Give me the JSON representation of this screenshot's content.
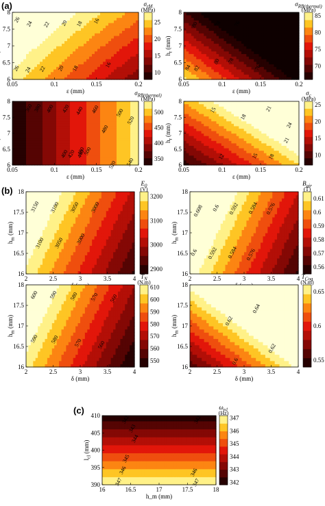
{
  "panel_labels": [
    "(a)",
    "(b)",
    "(c)"
  ],
  "chart_data": [
    {
      "type": "heatmap",
      "title": "σ_rM",
      "unit": "(MPa)",
      "xlabel": "ε (mm)",
      "ylabel": "h_r (mm)",
      "xlim": [
        0.05,
        0.2
      ],
      "ylim": [
        6,
        8
      ],
      "xticks": [
        "0.05",
        "0.1",
        "0.15",
        "0.2"
      ],
      "yticks": [
        "6",
        "6.5",
        "7",
        "7.5",
        "8"
      ],
      "colorbar": {
        "min": 8,
        "max": 28,
        "ticks": [
          "10",
          "15",
          "20",
          "25"
        ]
      },
      "model": {
        "z0": 27,
        "ax": -93,
        "ay": 3.5,
        "axy": 8,
        "axx": 0
      },
      "contour_labels": [
        "26",
        "24",
        "22",
        "20",
        "18",
        "16",
        "26",
        "24",
        "22",
        "20",
        "18",
        "16"
      ]
    },
    {
      "type": "heatmap",
      "title": "σ_RB(thermal)",
      "unit": "(MPa)",
      "xlabel": "ε (mm)",
      "ylabel": "h_r (mm)",
      "xlim": [
        0.05,
        0.2
      ],
      "ylim": [
        6,
        8
      ],
      "xticks": [
        "0.05",
        "0.1",
        "0.15",
        "0.2"
      ],
      "yticks": [
        "6",
        "6.5",
        "7",
        "7.5",
        "8"
      ],
      "colorbar": {
        "min": 66,
        "max": 86,
        "ticks": [
          "70",
          "75",
          "80",
          "85"
        ]
      },
      "model": {
        "z0": 84.5,
        "ax": -130,
        "ay": -8,
        "axy": 0,
        "axx": 0
      },
      "contour_labels": [
        "80",
        "78",
        "76",
        "84",
        "82",
        "80",
        "78",
        "76"
      ]
    },
    {
      "type": "heatmap",
      "title": "σ_RB(thermal)",
      "unit": "(MPa)",
      "xlabel": "ε (mm)",
      "ylabel": "h_r (mm)",
      "xlim": [
        0.05,
        0.2
      ],
      "ylim": [
        6,
        8
      ],
      "xticks": [
        "0.05",
        "0.1",
        "0.15",
        "0.2"
      ],
      "yticks": [
        "6",
        "6.5",
        "7",
        "7.5",
        "8"
      ],
      "colorbar": {
        "min": 330,
        "max": 535,
        "ticks": [
          "350",
          "400",
          "450",
          "500"
        ]
      },
      "model": {
        "z0": 330,
        "ax": 1300,
        "ay": 0,
        "axy": 0,
        "axx": 0
      },
      "contour_labels": [
        "360",
        "380",
        "400",
        "420",
        "440",
        "460",
        "500",
        "480",
        "520",
        "480",
        "500",
        "540",
        "520",
        "400",
        "420",
        "440"
      ]
    },
    {
      "type": "heatmap",
      "title": "σ_c",
      "unit": "(MPa)",
      "xlabel": "ε (mm)",
      "ylabel": "h_r (mm)",
      "xlim": [
        0.05,
        0.2
      ],
      "ylim": [
        6,
        8
      ],
      "xticks": [
        "0.05",
        "0.1",
        "0.15",
        "0.2"
      ],
      "yticks": [
        "6",
        "6.5",
        "7",
        "7.5",
        "8"
      ],
      "colorbar": {
        "min": 7,
        "max": 26,
        "ticks": [
          "10",
          "15",
          "20",
          "25"
        ]
      },
      "model": {
        "z0": 8,
        "ax": 105,
        "ay": 7,
        "axy": 0,
        "axx": 0
      },
      "contour_labels": [
        "21",
        "24",
        "15",
        "18",
        "21",
        "12",
        "15",
        "18"
      ]
    },
    {
      "type": "heatmap",
      "title": "E_0",
      "unit": "(V)",
      "xlabel": "δ (mm)",
      "ylabel": "h_m (mm)",
      "xlim": [
        2,
        4
      ],
      "ylim": [
        16,
        18
      ],
      "xticks": [
        "2",
        "2.5",
        "3",
        "3.5",
        "4"
      ],
      "yticks": [
        "16",
        "16.5",
        "17",
        "17.5",
        "18"
      ],
      "colorbar": {
        "min": 2880,
        "max": 3220,
        "ticks": [
          "2900",
          "3000",
          "3100",
          "3200"
        ]
      },
      "model": {
        "z0": 3210,
        "ax": -150,
        "ay": 55,
        "axy": 0,
        "axx": 0
      },
      "contour_labels": [
        "3150",
        "3100",
        "3050",
        "3000",
        "3100",
        "3050",
        "3000"
      ]
    },
    {
      "type": "heatmap",
      "title": "B_air",
      "unit": "(T)",
      "xlabel": "δ (mm)",
      "ylabel": "h_m (mm)",
      "xlim": [
        2,
        4
      ],
      "ylim": [
        16,
        18
      ],
      "xticks": [
        "2",
        "2.5",
        "3",
        "3.5",
        "4"
      ],
      "yticks": [
        "16",
        "16.5",
        "17",
        "17.5",
        "18"
      ],
      "colorbar": {
        "min": 0.555,
        "max": 0.615,
        "ticks": [
          "0.56",
          "0.57",
          "0.58",
          "0.59",
          "0.6",
          "0.61"
        ]
      },
      "model": {
        "z0": 0.6195,
        "ax": -0.0298,
        "ay": 0.0108,
        "axy": 0,
        "axx": 0
      },
      "contour_labels": [
        "0.608",
        "0.6",
        "0.592",
        "0.584",
        "0.576",
        "0.6",
        "0.592",
        "0.584",
        "0.576"
      ]
    },
    {
      "type": "heatmap",
      "title": "T_N",
      "unit": "(N.m)",
      "xlabel": "δ (mm)",
      "ylabel": "h_m (mm)",
      "xlim": [
        2,
        4
      ],
      "ylim": [
        16,
        18
      ],
      "xticks": [
        "2",
        "2.5",
        "3",
        "3.5",
        "4"
      ],
      "yticks": [
        "16",
        "16.5",
        "17",
        "17.5",
        "18"
      ],
      "colorbar": {
        "min": 545,
        "max": 612,
        "ticks": [
          "550",
          "560",
          "570",
          "580",
          "590",
          "600",
          "610"
        ]
      },
      "model": {
        "z0": 608,
        "ax": -32,
        "ay": 12,
        "axy": 0,
        "axx": 0
      },
      "contour_labels": [
        "600",
        "590",
        "580",
        "570",
        "560",
        "590",
        "580",
        "570",
        "560"
      ]
    },
    {
      "type": "heatmap",
      "title": "T_Cog",
      "unit": "(N.m)",
      "xlabel": "δ (mm)",
      "ylabel": "h_m (mm)",
      "xlim": [
        2,
        4
      ],
      "ylim": [
        16,
        18
      ],
      "xticks": [
        "2",
        "2.5",
        "3",
        "3.5",
        "4"
      ],
      "yticks": [
        "16",
        "16.5",
        "17",
        "17.5",
        "18"
      ],
      "colorbar": {
        "min": 0.54,
        "max": 0.66,
        "ticks": [
          "0.55",
          "0.6",
          "0.65"
        ]
      },
      "model": {
        "z0": 0.558,
        "ax": 0.053,
        "ay": 0.054,
        "axy": 0,
        "axx": 0
      },
      "contour_labels": [
        "0.64",
        "0.62",
        "0.62",
        "0.6"
      ]
    },
    {
      "type": "heatmap",
      "title": "ω_n1",
      "unit": "(Hz)",
      "xlabel": "h_m (mm)",
      "ylabel": "l_cl (mm)",
      "xlim": [
        16,
        18
      ],
      "ylim": [
        390,
        410
      ],
      "xticks": [
        "16",
        "16.5",
        "17",
        "17.5",
        "18"
      ],
      "yticks": [
        "390",
        "395",
        "400",
        "405",
        "410"
      ],
      "colorbar": {
        "min": 341.8,
        "max": 347.2,
        "ticks": [
          "342",
          "343",
          "344",
          "345",
          "346",
          "347"
        ]
      },
      "model": {
        "z0": 347.1,
        "ax": 0,
        "ay": -0.25,
        "axy": 0,
        "axx": 0
      },
      "contour_labels": [
        "342",
        "342",
        "343",
        "344",
        "345",
        "346",
        "346",
        "347",
        "347"
      ]
    }
  ]
}
